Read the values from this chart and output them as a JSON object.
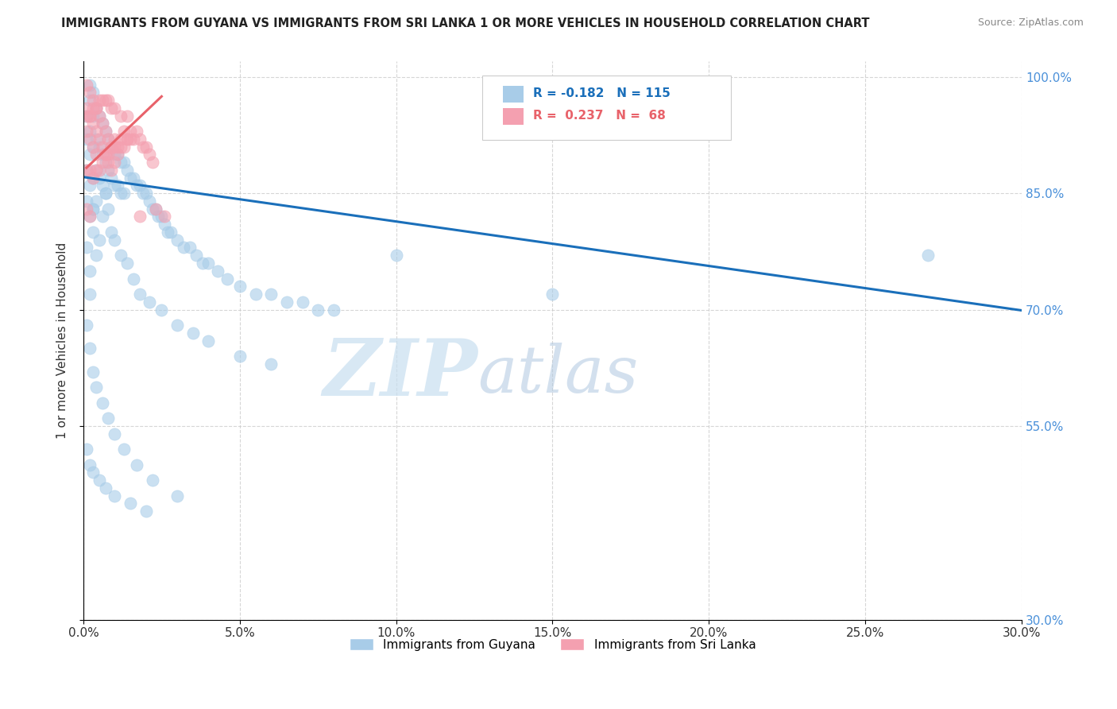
{
  "title": "IMMIGRANTS FROM GUYANA VS IMMIGRANTS FROM SRI LANKA 1 OR MORE VEHICLES IN HOUSEHOLD CORRELATION CHART",
  "source": "Source: ZipAtlas.com",
  "xlabel": "",
  "ylabel": "1 or more Vehicles in Household",
  "xlim": [
    0.0,
    0.3
  ],
  "ylim": [
    0.3,
    1.02
  ],
  "xticks": [
    0.0,
    0.05,
    0.1,
    0.15,
    0.2,
    0.25,
    0.3
  ],
  "xticklabels": [
    "0.0%",
    "5.0%",
    "10.0%",
    "15.0%",
    "20.0%",
    "25.0%",
    "30.0%"
  ],
  "yticks": [
    0.3,
    0.55,
    0.7,
    0.85,
    1.0
  ],
  "yticklabels": [
    "30.0%",
    "55.0%",
    "70.0%",
    "85.0%",
    "100.0%"
  ],
  "legend_guyana": "Immigrants from Guyana",
  "legend_srilanka": "Immigrants from Sri Lanka",
  "R_guyana": -0.182,
  "N_guyana": 115,
  "R_srilanka": 0.237,
  "N_srilanka": 68,
  "guyana_color": "#a8cce8",
  "srilanka_color": "#f4a0b0",
  "guyana_line_color": "#1a6fba",
  "srilanka_line_color": "#e8626a",
  "watermark_zip": "ZIP",
  "watermark_atlas": "atlas",
  "background_color": "#ffffff",
  "guyana_line_x0": 0.0,
  "guyana_line_y0": 0.871,
  "guyana_line_x1": 0.3,
  "guyana_line_y1": 0.699,
  "srilanka_line_x0": 0.001,
  "srilanka_line_y0": 0.883,
  "srilanka_line_x1": 0.025,
  "srilanka_line_y1": 0.975,
  "guyana_x": [
    0.001,
    0.001,
    0.001,
    0.001,
    0.002,
    0.002,
    0.002,
    0.002,
    0.002,
    0.002,
    0.003,
    0.003,
    0.003,
    0.003,
    0.003,
    0.004,
    0.004,
    0.004,
    0.004,
    0.005,
    0.005,
    0.005,
    0.006,
    0.006,
    0.006,
    0.007,
    0.007,
    0.007,
    0.008,
    0.008,
    0.009,
    0.009,
    0.01,
    0.01,
    0.011,
    0.011,
    0.012,
    0.012,
    0.013,
    0.013,
    0.014,
    0.015,
    0.016,
    0.017,
    0.018,
    0.019,
    0.02,
    0.021,
    0.022,
    0.023,
    0.024,
    0.025,
    0.026,
    0.027,
    0.028,
    0.03,
    0.032,
    0.034,
    0.036,
    0.038,
    0.04,
    0.043,
    0.046,
    0.05,
    0.055,
    0.06,
    0.065,
    0.07,
    0.075,
    0.08,
    0.001,
    0.002,
    0.002,
    0.003,
    0.003,
    0.004,
    0.005,
    0.006,
    0.007,
    0.008,
    0.009,
    0.01,
    0.012,
    0.014,
    0.016,
    0.018,
    0.021,
    0.025,
    0.03,
    0.035,
    0.04,
    0.05,
    0.06,
    0.001,
    0.002,
    0.003,
    0.004,
    0.006,
    0.008,
    0.01,
    0.013,
    0.017,
    0.022,
    0.03,
    0.1,
    0.15,
    0.27,
    0.001,
    0.002,
    0.003,
    0.005,
    0.007,
    0.01,
    0.015,
    0.02
  ],
  "guyana_y": [
    0.95,
    0.92,
    0.88,
    0.84,
    0.99,
    0.97,
    0.93,
    0.9,
    0.86,
    0.82,
    0.98,
    0.95,
    0.91,
    0.87,
    0.83,
    0.96,
    0.92,
    0.88,
    0.84,
    0.95,
    0.91,
    0.87,
    0.94,
    0.9,
    0.86,
    0.93,
    0.89,
    0.85,
    0.92,
    0.88,
    0.91,
    0.87,
    0.9,
    0.86,
    0.9,
    0.86,
    0.89,
    0.85,
    0.89,
    0.85,
    0.88,
    0.87,
    0.87,
    0.86,
    0.86,
    0.85,
    0.85,
    0.84,
    0.83,
    0.83,
    0.82,
    0.82,
    0.81,
    0.8,
    0.8,
    0.79,
    0.78,
    0.78,
    0.77,
    0.76,
    0.76,
    0.75,
    0.74,
    0.73,
    0.72,
    0.72,
    0.71,
    0.71,
    0.7,
    0.7,
    0.78,
    0.75,
    0.72,
    0.83,
    0.8,
    0.77,
    0.79,
    0.82,
    0.85,
    0.83,
    0.8,
    0.79,
    0.77,
    0.76,
    0.74,
    0.72,
    0.71,
    0.7,
    0.68,
    0.67,
    0.66,
    0.64,
    0.63,
    0.68,
    0.65,
    0.62,
    0.6,
    0.58,
    0.56,
    0.54,
    0.52,
    0.5,
    0.48,
    0.46,
    0.77,
    0.72,
    0.77,
    0.52,
    0.5,
    0.49,
    0.48,
    0.47,
    0.46,
    0.45,
    0.44
  ],
  "srilanka_x": [
    0.001,
    0.001,
    0.001,
    0.002,
    0.002,
    0.002,
    0.003,
    0.003,
    0.003,
    0.004,
    0.004,
    0.004,
    0.005,
    0.005,
    0.006,
    0.006,
    0.007,
    0.007,
    0.008,
    0.008,
    0.009,
    0.009,
    0.01,
    0.01,
    0.011,
    0.012,
    0.013,
    0.014,
    0.015,
    0.016,
    0.017,
    0.018,
    0.019,
    0.02,
    0.021,
    0.022,
    0.001,
    0.002,
    0.003,
    0.004,
    0.005,
    0.006,
    0.007,
    0.008,
    0.009,
    0.01,
    0.011,
    0.012,
    0.013,
    0.014,
    0.015,
    0.001,
    0.002,
    0.003,
    0.004,
    0.005,
    0.006,
    0.007,
    0.008,
    0.009,
    0.01,
    0.012,
    0.014,
    0.001,
    0.002,
    0.018,
    0.023,
    0.026
  ],
  "srilanka_y": [
    0.99,
    0.96,
    0.93,
    0.98,
    0.95,
    0.92,
    0.97,
    0.94,
    0.91,
    0.96,
    0.93,
    0.9,
    0.95,
    0.92,
    0.94,
    0.91,
    0.93,
    0.9,
    0.92,
    0.89,
    0.91,
    0.88,
    0.92,
    0.89,
    0.91,
    0.92,
    0.93,
    0.92,
    0.93,
    0.92,
    0.93,
    0.92,
    0.91,
    0.91,
    0.9,
    0.89,
    0.88,
    0.88,
    0.87,
    0.88,
    0.88,
    0.89,
    0.9,
    0.9,
    0.91,
    0.91,
    0.9,
    0.91,
    0.91,
    0.92,
    0.92,
    0.95,
    0.95,
    0.96,
    0.96,
    0.97,
    0.97,
    0.97,
    0.97,
    0.96,
    0.96,
    0.95,
    0.95,
    0.83,
    0.82,
    0.82,
    0.83,
    0.82
  ]
}
